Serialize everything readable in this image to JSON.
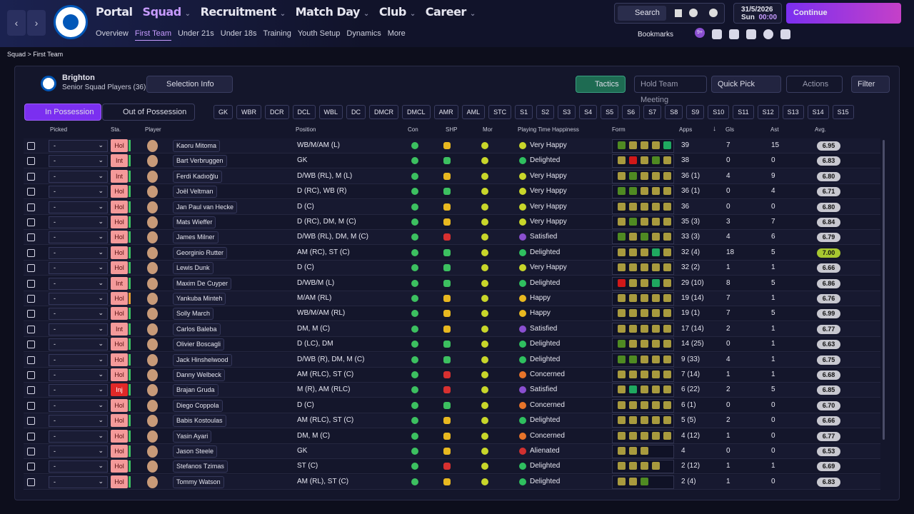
{
  "nav": {
    "menus": [
      "Portal",
      "Squad",
      "Recruitment",
      "Match Day",
      "Club",
      "Career"
    ],
    "active_menu": 1,
    "submenu": [
      "Overview",
      "First Team",
      "Under 21s",
      "Under 18s",
      "Training",
      "Youth Setup",
      "Dynamics",
      "More"
    ],
    "active_sub": 1,
    "search": "Search",
    "date": "31/5/2026",
    "day": "Sun",
    "time": "00:00",
    "continue": "Continue",
    "bookmarks": "Bookmarks",
    "badge": "9+"
  },
  "breadcrumb": [
    "Squad",
    "First Team"
  ],
  "team": {
    "name": "Brighton",
    "subtitle": "Senior Squad Players (36)",
    "selection_info": "Selection Info",
    "tactics": "Tactics",
    "meeting": "Hold Team Meeting",
    "quick_pick": "Quick Pick",
    "actions": "Actions",
    "filter": "Filter"
  },
  "tabs": [
    "In Possession",
    "Out of Possession"
  ],
  "positions": [
    "GK",
    "WBR",
    "DCR",
    "DCL",
    "WBL",
    "DC",
    "DMCR",
    "DMCL",
    "AMR",
    "AML",
    "STC",
    "S1",
    "S2",
    "S3",
    "S4",
    "S5",
    "S6",
    "S7",
    "S8",
    "S9",
    "S10",
    "S11",
    "S12",
    "S13",
    "S14",
    "S15"
  ],
  "columns": [
    "Picked",
    "Sta.",
    "Player",
    "Position",
    "Con",
    "SHP",
    "Mor",
    "Playing Time Happiness",
    "Form",
    "Apps",
    "Gls",
    "Ast",
    "Avg."
  ],
  "rows": [
    {
      "picked": "-",
      "status": "Hol",
      "name": "Kaoru Mitoma",
      "position": "WB/M/AM (L)",
      "happiness": "Very Happy",
      "apps": "39",
      "gls": "7",
      "ast": "15",
      "avg": "6.95",
      "shp": "#e8b820",
      "mood": "#c8d62a",
      "form": [
        "#4f8a22",
        "#a89a3e",
        "#a89a3e",
        "#a89a3e",
        "#1fa860"
      ]
    },
    {
      "picked": "-",
      "status": "Int",
      "name": "Bart Verbruggen",
      "position": "GK",
      "happiness": "Delighted",
      "apps": "38",
      "gls": "0",
      "ast": "0",
      "avg": "6.83",
      "shp": "#3cc060",
      "mood": "#2fbf5f",
      "form": [
        "#a89a3e",
        "#d01818",
        "#a89a3e",
        "#4f8a22",
        "#a89a3e"
      ]
    },
    {
      "picked": "-",
      "status": "Int",
      "name": "Ferdi Kadıoğlu",
      "position": "D/WB (RL), M (L)",
      "happiness": "Very Happy",
      "apps": "36 (1)",
      "gls": "4",
      "ast": "9",
      "avg": "6.80",
      "shp": "#e8b820",
      "mood": "#c8d62a",
      "form": [
        "#a89a3e",
        "#4f8a22",
        "#a89a3e",
        "#a89a3e",
        "#a89a3e"
      ]
    },
    {
      "picked": "-",
      "status": "Hol",
      "name": "Joël Veltman",
      "position": "D (RC), WB (R)",
      "happiness": "Very Happy",
      "apps": "36 (1)",
      "gls": "0",
      "ast": "4",
      "avg": "6.71",
      "shp": "#3cc060",
      "mood": "#c8d62a",
      "form": [
        "#4f8a22",
        "#4f8a22",
        "#a89a3e",
        "#a89a3e",
        "#a89a3e"
      ]
    },
    {
      "picked": "-",
      "status": "Hol",
      "name": "Jan Paul van Hecke",
      "position": "D (C)",
      "happiness": "Very Happy",
      "apps": "36",
      "gls": "0",
      "ast": "0",
      "avg": "6.80",
      "shp": "#e8b820",
      "mood": "#c8d62a",
      "form": [
        "#a89a3e",
        "#a89a3e",
        "#a89a3e",
        "#a89a3e",
        "#a89a3e"
      ]
    },
    {
      "picked": "-",
      "status": "Hol",
      "name": "Mats Wieffer",
      "position": "D (RC), DM, M (C)",
      "happiness": "Very Happy",
      "apps": "35 (3)",
      "gls": "3",
      "ast": "7",
      "avg": "6.84",
      "shp": "#e8b820",
      "mood": "#c8d62a",
      "form": [
        "#a89a3e",
        "#4f8a22",
        "#a89a3e",
        "#a89a3e",
        "#a89a3e"
      ]
    },
    {
      "picked": "-",
      "status": "Hol",
      "name": "James Milner",
      "position": "D/WB (RL), DM, M (C)",
      "happiness": "Satisfied",
      "apps": "33 (3)",
      "gls": "4",
      "ast": "6",
      "avg": "6.79",
      "shp": "#d83030",
      "mood": "#8a4fd0",
      "form": [
        "#4f8a22",
        "#a89a3e",
        "#4f8a22",
        "#a89a3e",
        "#a89a3e"
      ]
    },
    {
      "picked": "-",
      "status": "Hol",
      "name": "Georginio Rutter",
      "position": "AM (RC), ST (C)",
      "happiness": "Delighted",
      "apps": "32 (4)",
      "gls": "18",
      "ast": "5",
      "avg": "7.00",
      "shp": "#3cc060",
      "mood": "#2fbf5f",
      "form": [
        "#a89a3e",
        "#a89a3e",
        "#a89a3e",
        "#1fa860",
        "#a89a3e"
      ]
    },
    {
      "picked": "-",
      "status": "Hol",
      "name": "Lewis Dunk",
      "position": "D (C)",
      "happiness": "Very Happy",
      "apps": "32 (2)",
      "gls": "1",
      "ast": "1",
      "avg": "6.66",
      "shp": "#3cc060",
      "mood": "#c8d62a",
      "form": [
        "#a89a3e",
        "#a89a3e",
        "#a89a3e",
        "#a89a3e",
        "#a89a3e"
      ]
    },
    {
      "picked": "-",
      "status": "Int",
      "name": "Maxim De Cuyper",
      "position": "D/WB/M (L)",
      "happiness": "Delighted",
      "apps": "29 (10)",
      "gls": "8",
      "ast": "5",
      "avg": "6.86",
      "shp": "#3cc060",
      "mood": "#2fbf5f",
      "form": [
        "#d01818",
        "#a89a3e",
        "#a89a3e",
        "#1fa860",
        "#a89a3e"
      ]
    },
    {
      "picked": "-",
      "status": "Hol",
      "name": "Yankuba Minteh",
      "position": "M/AM (RL)",
      "happiness": "Happy",
      "apps": "19 (14)",
      "gls": "7",
      "ast": "1",
      "avg": "6.76",
      "shp": "#e8b820",
      "mood": "#e8b820",
      "form": [
        "#a89a3e",
        "#a89a3e",
        "#a89a3e",
        "#a89a3e",
        "#a89a3e"
      ]
    },
    {
      "picked": "-",
      "status": "Hol",
      "name": "Solly March",
      "position": "WB/M/AM (RL)",
      "happiness": "Happy",
      "apps": "19 (1)",
      "gls": "7",
      "ast": "5",
      "avg": "6.99",
      "shp": "#e8b820",
      "mood": "#e8b820",
      "form": [
        "#a89a3e",
        "#a89a3e",
        "#a89a3e",
        "#a89a3e",
        "#a89a3e"
      ]
    },
    {
      "picked": "-",
      "status": "Int",
      "name": "Carlos Baleba",
      "position": "DM, M (C)",
      "happiness": "Satisfied",
      "apps": "17 (14)",
      "gls": "2",
      "ast": "1",
      "avg": "6.77",
      "shp": "#e8b820",
      "mood": "#8a4fd0",
      "form": [
        "#a89a3e",
        "#a89a3e",
        "#a89a3e",
        "#a89a3e",
        "#a89a3e"
      ]
    },
    {
      "picked": "-",
      "status": "Hol",
      "name": "Olivier Boscagli",
      "position": "D (LC), DM",
      "happiness": "Delighted",
      "apps": "14 (25)",
      "gls": "0",
      "ast": "1",
      "avg": "6.63",
      "shp": "#3cc060",
      "mood": "#2fbf5f",
      "form": [
        "#4f8a22",
        "#a89a3e",
        "#a89a3e",
        "#a89a3e",
        "#a89a3e"
      ]
    },
    {
      "picked": "-",
      "status": "Hol",
      "name": "Jack Hinshelwood",
      "position": "D/WB (R), DM, M (C)",
      "happiness": "Delighted",
      "apps": "9 (33)",
      "gls": "4",
      "ast": "1",
      "avg": "6.75",
      "shp": "#3cc060",
      "mood": "#2fbf5f",
      "form": [
        "#4f8a22",
        "#4f8a22",
        "#a89a3e",
        "#a89a3e",
        "#a89a3e"
      ]
    },
    {
      "picked": "-",
      "status": "Hol",
      "name": "Danny Welbeck",
      "position": "AM (RLC), ST (C)",
      "happiness": "Concerned",
      "apps": "7 (14)",
      "gls": "1",
      "ast": "1",
      "avg": "6.68",
      "shp": "#d83030",
      "mood": "#e8742a",
      "form": [
        "#a89a3e",
        "#a89a3e",
        "#a89a3e",
        "#a89a3e",
        "#a89a3e"
      ]
    },
    {
      "picked": "-",
      "status": "Inj",
      "name": "Brajan Gruda",
      "position": "M (R), AM (RLC)",
      "happiness": "Satisfied",
      "apps": "6 (22)",
      "gls": "2",
      "ast": "5",
      "avg": "6.85",
      "shp": "#d83030",
      "mood": "#8a4fd0",
      "form": [
        "#a89a3e",
        "#1fa860",
        "#a89a3e",
        "#a89a3e",
        "#a89a3e"
      ]
    },
    {
      "picked": "-",
      "status": "Hol",
      "name": "Diego Coppola",
      "position": "D (C)",
      "happiness": "Concerned",
      "apps": "6 (1)",
      "gls": "0",
      "ast": "0",
      "avg": "6.70",
      "shp": "#3cc060",
      "mood": "#e8742a",
      "form": [
        "#a89a3e",
        "#a89a3e",
        "#a89a3e",
        "#a89a3e",
        "#a89a3e"
      ]
    },
    {
      "picked": "-",
      "status": "Hol",
      "name": "Babis Kostoulas",
      "position": "AM (RLC), ST (C)",
      "happiness": "Delighted",
      "apps": "5 (5)",
      "gls": "2",
      "ast": "0",
      "avg": "6.66",
      "shp": "#e8b820",
      "mood": "#2fbf5f",
      "form": [
        "#a89a3e",
        "#a89a3e",
        "#a89a3e",
        "#a89a3e",
        "#a89a3e"
      ]
    },
    {
      "picked": "-",
      "status": "Hol",
      "name": "Yasin Ayari",
      "position": "DM, M (C)",
      "happiness": "Concerned",
      "apps": "4 (12)",
      "gls": "1",
      "ast": "0",
      "avg": "6.77",
      "shp": "#e8b820",
      "mood": "#e8742a",
      "form": [
        "#a89a3e",
        "#a89a3e",
        "#a89a3e",
        "#a89a3e",
        "#a89a3e"
      ]
    },
    {
      "picked": "-",
      "status": "Hol",
      "name": "Jason Steele",
      "position": "GK",
      "happiness": "Alienated",
      "apps": "4",
      "gls": "0",
      "ast": "0",
      "avg": "6.53",
      "shp": "#e8b820",
      "mood": "#d03030",
      "form": [
        "#a89a3e",
        "#a89a3e",
        "#a89a3e"
      ]
    },
    {
      "picked": "-",
      "status": "Hol",
      "name": "Stefanos Tzimas",
      "position": "ST (C)",
      "happiness": "Delighted",
      "apps": "2 (12)",
      "gls": "1",
      "ast": "1",
      "avg": "6.69",
      "shp": "#d83030",
      "mood": "#2fbf5f",
      "form": [
        "#a89a3e",
        "#a89a3e",
        "#a89a3e",
        "#a89a3e"
      ]
    },
    {
      "picked": "-",
      "status": "Hol",
      "name": "Tommy Watson",
      "position": "AM (RL), ST (C)",
      "happiness": "Delighted",
      "apps": "2 (4)",
      "gls": "1",
      "ast": "0",
      "avg": "6.83",
      "shp": "#e8b820",
      "mood": "#2fbf5f",
      "form": [
        "#a89a3e",
        "#a89a3e",
        "#4f8a22"
      ]
    }
  ]
}
